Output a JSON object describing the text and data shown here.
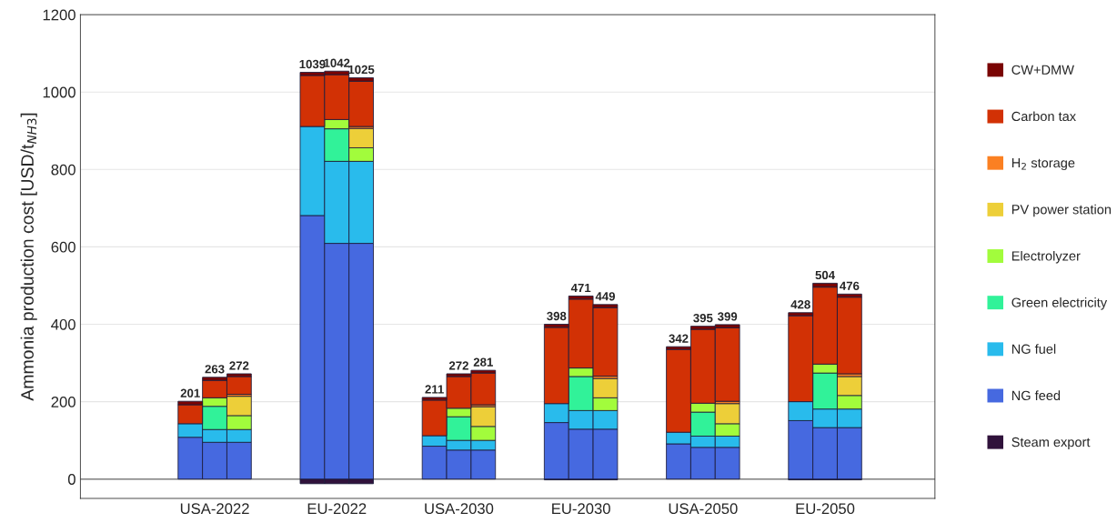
{
  "chart_data": {
    "type": "bar",
    "stacked": true,
    "ylabel": "Ammonia production cost [USD/t$_{NH3}$]",
    "categories": [
      null,
      null,
      null,
      null,
      null,
      "USA-2022",
      null,
      null,
      null,
      null,
      "EU-2022",
      null,
      null,
      null,
      null,
      "USA-2030",
      null,
      null,
      null,
      null,
      "EU-2030",
      null,
      null,
      null,
      null,
      "USA-2050",
      null,
      null,
      null,
      null,
      "EU-2050",
      null,
      null,
      null,
      null
    ],
    "ylim": [
      -50,
      1200
    ],
    "yticks": [
      0,
      200,
      400,
      600,
      800,
      1000,
      1200
    ],
    "grid": true,
    "legend": "right",
    "ref_lines": [
      {
        "axis": "y",
        "value": 0,
        "color": "#808080"
      }
    ],
    "series": [
      {
        "name": "Steam export",
        "color": "#30123b",
        "values": [
          null,
          null,
          null,
          null,
          null,
          null,
          null,
          null,
          null,
          -12,
          -12,
          -12,
          null,
          null,
          null,
          null,
          null,
          null,
          null,
          -2,
          -2,
          -2,
          null,
          null,
          null,
          null,
          null,
          null,
          null,
          -2,
          -2,
          -2,
          null,
          null,
          null
        ]
      },
      {
        "name": "NG feed",
        "color": "#4669e0",
        "values": [
          null,
          null,
          null,
          null,
          108,
          95,
          95,
          null,
          null,
          681,
          609,
          609,
          null,
          null,
          85,
          75,
          75,
          null,
          null,
          146,
          129,
          129,
          null,
          null,
          91,
          82,
          82,
          null,
          null,
          151,
          133,
          133,
          null,
          null,
          null
        ]
      },
      {
        "name": "NG fuel",
        "color": "#29bbec",
        "values": [
          null,
          null,
          null,
          null,
          35,
          33,
          33,
          null,
          null,
          230,
          212,
          212,
          null,
          null,
          27,
          25,
          25,
          null,
          null,
          49,
          48,
          48,
          null,
          null,
          30,
          29,
          29,
          null,
          null,
          49,
          48,
          48,
          null,
          null,
          null
        ]
      },
      {
        "name": "Green electricity",
        "color": "#31f299",
        "values": [
          null,
          null,
          null,
          null,
          null,
          60,
          null,
          null,
          null,
          null,
          84,
          null,
          null,
          null,
          null,
          61,
          null,
          null,
          null,
          null,
          88,
          null,
          null,
          null,
          null,
          62,
          null,
          null,
          null,
          null,
          93,
          null,
          null,
          null,
          null
        ]
      },
      {
        "name": "Electrolyzer",
        "color": "#a2fc3c",
        "values": [
          null,
          null,
          null,
          null,
          null,
          22,
          36,
          null,
          null,
          null,
          24,
          35,
          null,
          null,
          null,
          22,
          36,
          null,
          null,
          null,
          22,
          33,
          null,
          null,
          null,
          23,
          32,
          null,
          null,
          null,
          23,
          35,
          null,
          null,
          null
        ]
      },
      {
        "name": "PV power station",
        "color": "#edcf39",
        "values": [
          null,
          null,
          null,
          null,
          null,
          null,
          50,
          null,
          null,
          null,
          null,
          50,
          null,
          null,
          null,
          null,
          51,
          null,
          null,
          null,
          null,
          50,
          null,
          null,
          null,
          null,
          52,
          null,
          null,
          null,
          null,
          49,
          null,
          null,
          null
        ]
      },
      {
        "name": "H$_{2}$ storage",
        "color": "#fb8022",
        "values": [
          null,
          null,
          null,
          null,
          null,
          null,
          5,
          null,
          null,
          null,
          null,
          5,
          null,
          null,
          null,
          null,
          5,
          null,
          null,
          null,
          null,
          6,
          null,
          null,
          null,
          null,
          6,
          null,
          null,
          null,
          null,
          7,
          null,
          null,
          null
        ]
      },
      {
        "name": "Carbon tax",
        "color": "#d23105",
        "values": [
          null,
          null,
          null,
          null,
          49,
          45,
          46,
          null,
          null,
          132,
          116,
          117,
          null,
          null,
          92,
          82,
          82,
          null,
          null,
          197,
          178,
          177,
          null,
          null,
          214,
          191,
          190,
          null,
          null,
          222,
          199,
          198,
          null,
          null,
          null
        ]
      },
      {
        "name": "CW+DMW",
        "color": "#7a0403",
        "values": [
          null,
          null,
          null,
          null,
          9,
          8,
          7,
          null,
          null,
          8,
          9,
          9,
          null,
          null,
          7,
          7,
          7,
          null,
          null,
          8,
          8,
          8,
          null,
          null,
          7,
          8,
          8,
          null,
          null,
          8,
          10,
          8,
          null,
          null,
          null
        ]
      }
    ],
    "totals": [
      null,
      null,
      null,
      null,
      "201",
      "263",
      "272",
      null,
      null,
      "1039",
      "1042",
      "1025",
      null,
      null,
      "211",
      "272",
      "281",
      null,
      null,
      "398",
      "471",
      "449",
      null,
      null,
      "342",
      "395",
      "399",
      null,
      null,
      "428",
      "504",
      "476",
      null,
      null,
      null
    ]
  }
}
